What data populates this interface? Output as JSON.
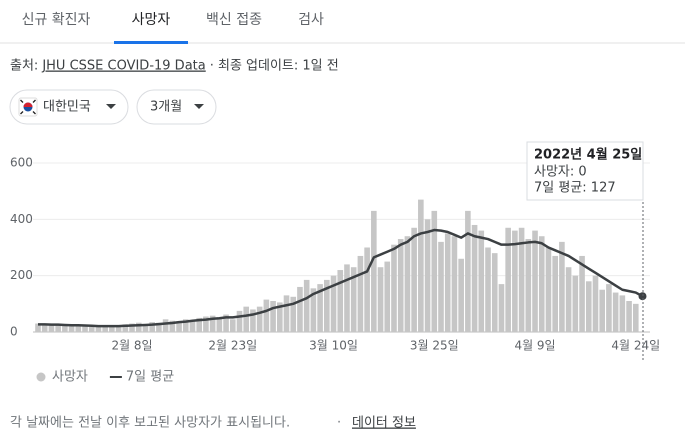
{
  "tabs": [
    "신규 확진자",
    "사망자",
    "백신 접종",
    "검사"
  ],
  "source": {
    "label": "출처:",
    "link": "JHU CSSE COVID-19 Data",
    "rest": "· 최종 업데이트: 1일 전"
  },
  "filters": [
    "대한민국",
    "3개월"
  ],
  "tooltip": {
    "date": "2022년 4월 25일",
    "lines": [
      "사망자: 0",
      "7일 평균: 127"
    ]
  },
  "footer": {
    "note": "각 날짜에는 전날 이후 보고된 사망자가 표시됩니다.",
    "separator": "·",
    "link": "데이터 정보"
  },
  "chart_data": {
    "type": "bar",
    "categories": [
      null,
      null,
      null,
      null,
      null,
      null,
      null,
      null,
      null,
      null,
      null,
      null,
      null,
      null,
      "2월 8일",
      null,
      null,
      null,
      null,
      null,
      null,
      null,
      null,
      null,
      null,
      null,
      null,
      null,
      null,
      "2월 23일",
      null,
      null,
      null,
      null,
      null,
      null,
      null,
      null,
      null,
      null,
      null,
      null,
      null,
      null,
      "3월 10일",
      null,
      null,
      null,
      null,
      null,
      null,
      null,
      null,
      null,
      null,
      null,
      null,
      null,
      null,
      "3월 25일",
      null,
      null,
      null,
      null,
      null,
      null,
      null,
      null,
      null,
      null,
      null,
      null,
      null,
      null,
      "4월 9일",
      null,
      null,
      null,
      null,
      null,
      null,
      null,
      null,
      null,
      null,
      null,
      null,
      null,
      null,
      "4월 24일",
      null
    ],
    "series": [
      {
        "name": "사망자",
        "type": "bar",
        "color": "#c6c6c6",
        "values": [
          30,
          28,
          25,
          24,
          22,
          20,
          25,
          22,
          18,
          20,
          22,
          24,
          18,
          27,
          30,
          33,
          25,
          35,
          33,
          45,
          40,
          38,
          45,
          40,
          50,
          55,
          58,
          48,
          62,
          45,
          75,
          90,
          80,
          90,
          115,
          110,
          105,
          130,
          125,
          160,
          185,
          155,
          170,
          185,
          200,
          220,
          240,
          230,
          270,
          300,
          430,
          230,
          250,
          310,
          330,
          340,
          370,
          470,
          400,
          430,
          320,
          350,
          340,
          260,
          430,
          380,
          360,
          300,
          280,
          170,
          370,
          360,
          370,
          330,
          360,
          340,
          300,
          270,
          320,
          230,
          200,
          270,
          180,
          200,
          150,
          170,
          140,
          130,
          110,
          100,
          0
        ]
      },
      {
        "name": "7일 평균",
        "type": "line",
        "color": "#3c4043",
        "values": [
          27,
          27,
          26,
          26,
          25,
          24,
          24,
          23,
          22,
          21,
          21,
          21,
          21,
          22,
          23,
          24,
          25,
          26,
          28,
          30,
          32,
          35,
          37,
          40,
          42,
          44,
          47,
          49,
          52,
          52,
          55,
          58,
          62,
          68,
          75,
          85,
          90,
          95,
          100,
          110,
          120,
          135,
          145,
          155,
          165,
          175,
          185,
          195,
          205,
          215,
          265,
          275,
          285,
          295,
          310,
          320,
          340,
          350,
          355,
          362,
          360,
          355,
          345,
          335,
          350,
          340,
          335,
          330,
          320,
          310,
          310,
          312,
          315,
          318,
          320,
          315,
          300,
          290,
          280,
          270,
          255,
          240,
          225,
          210,
          195,
          180,
          165,
          150,
          145,
          140,
          127
        ]
      }
    ],
    "ylim": [
      0,
      600
    ],
    "yticks": [
      0,
      200,
      400,
      600
    ],
    "grid": true
  }
}
